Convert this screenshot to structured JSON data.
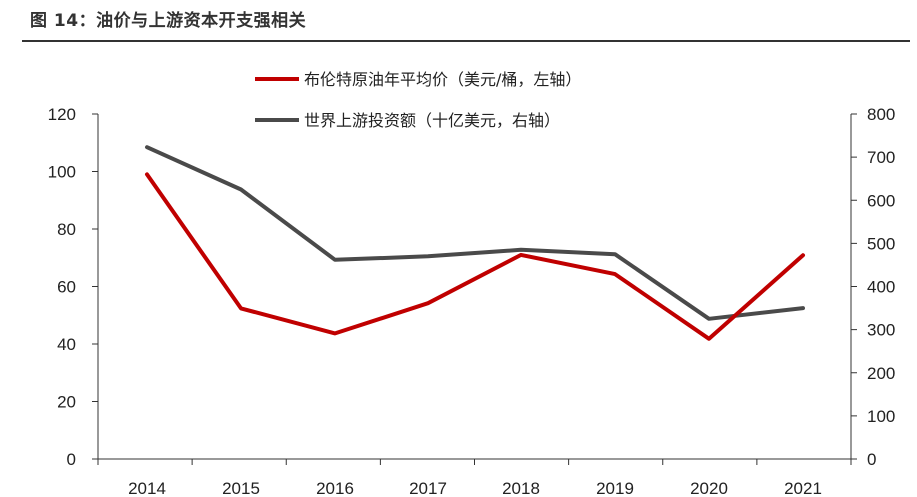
{
  "figure": {
    "title": "图 14：油价与上游资本开支强相关"
  },
  "colors": {
    "brent": "#C00000",
    "capex": "#4A4A4A",
    "axis": "#333333"
  },
  "chart_data": {
    "type": "line",
    "x": [
      "2014",
      "2015",
      "2016",
      "2017",
      "2018",
      "2019",
      "2020",
      "2021"
    ],
    "series": [
      {
        "name": "布伦特原油年平均价（美元/桶，左轴）",
        "axis": "left",
        "values": [
          99,
          52.4,
          43.7,
          54.2,
          71,
          64.3,
          41.8,
          70.9
        ]
      },
      {
        "name": "世界上游投资额（十亿美元，右轴）",
        "axis": "right",
        "values": [
          723,
          625,
          462,
          470,
          485,
          475,
          325,
          350
        ]
      }
    ],
    "y_left": {
      "ticks": [
        "0",
        "20",
        "40",
        "60",
        "80",
        "100",
        "120"
      ],
      "range": [
        0,
        120
      ]
    },
    "y_right": {
      "ticks": [
        "0",
        "100",
        "200",
        "300",
        "400",
        "500",
        "600",
        "700",
        "800"
      ],
      "range": [
        0,
        800
      ]
    },
    "legend_position": "top-center",
    "grid": false
  }
}
